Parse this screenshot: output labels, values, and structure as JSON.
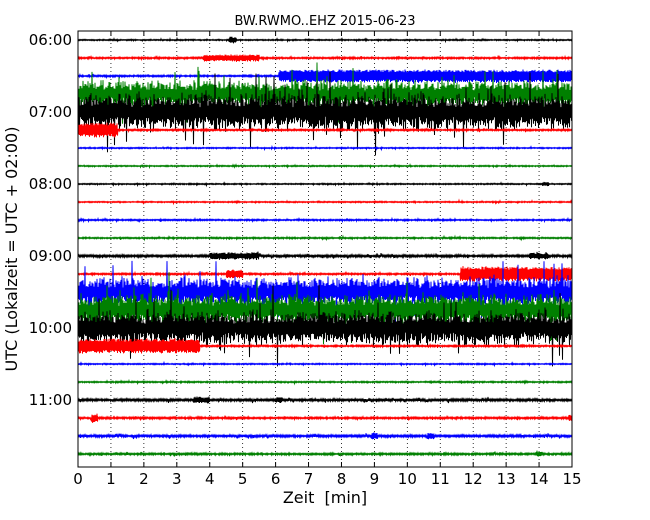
{
  "chart_data": {
    "type": "line",
    "title": "BW.RWMO..EHZ 2015-06-23",
    "xlabel": "Zeit  [min]",
    "ylabel": "UTC (Lokalzeit = UTC + 02:00)",
    "xlim": [
      0,
      15
    ],
    "xticks": [
      0,
      1,
      2,
      3,
      4,
      5,
      6,
      7,
      8,
      9,
      10,
      11,
      12,
      13,
      14,
      15
    ],
    "ytick_labels": [
      "06:00",
      "07:00",
      "08:00",
      "09:00",
      "10:00",
      "11:00"
    ],
    "grid": "vertical dotted at each minute",
    "colors": [
      "#000000",
      "#ff0000",
      "#0000ff",
      "#008000"
    ],
    "traces": [
      {
        "start": "06:00",
        "color": "#000000",
        "base": 0.25,
        "bursts": [
          [
            4.6,
            4.8,
            3
          ]
        ]
      },
      {
        "start": "06:15",
        "color": "#ff0000",
        "base": 0.35,
        "bursts": [
          [
            3.8,
            5.5,
            3
          ]
        ]
      },
      {
        "start": "06:30",
        "color": "#0000ff",
        "base": 0.35,
        "bursts": [
          [
            6.1,
            15,
            6
          ]
        ]
      },
      {
        "start": "06:45",
        "color": "#008000",
        "base": 5.5,
        "bursts": []
      },
      {
        "start": "07:00",
        "color": "#000000",
        "base": 7.5,
        "bursts": []
      },
      {
        "start": "07:15",
        "color": "#ff0000",
        "base": 0.35,
        "bursts": [
          [
            0,
            1.2,
            7
          ]
        ]
      },
      {
        "start": "07:30",
        "color": "#0000ff",
        "base": 0.25,
        "bursts": []
      },
      {
        "start": "07:45",
        "color": "#008000",
        "base": 0.25,
        "bursts": []
      },
      {
        "start": "08:00",
        "color": "#000000",
        "base": 0.25,
        "bursts": [
          [
            14.1,
            14.3,
            2
          ]
        ]
      },
      {
        "start": "08:15",
        "color": "#ff0000",
        "base": 0.25,
        "bursts": []
      },
      {
        "start": "08:30",
        "color": "#0000ff",
        "base": 0.3,
        "bursts": []
      },
      {
        "start": "08:45",
        "color": "#008000",
        "base": 0.3,
        "bursts": []
      },
      {
        "start": "09:00",
        "color": "#000000",
        "base": 0.5,
        "bursts": [
          [
            4.0,
            5.5,
            3
          ],
          [
            13.7,
            14.3,
            2.5
          ]
        ]
      },
      {
        "start": "09:15",
        "color": "#ff0000",
        "base": 0.35,
        "bursts": [
          [
            4.5,
            5.0,
            4
          ],
          [
            11.6,
            15,
            7
          ]
        ]
      },
      {
        "start": "09:30",
        "color": "#0000ff",
        "base": 6,
        "bursts": []
      },
      {
        "start": "09:45",
        "color": "#008000",
        "base": 6.5,
        "bursts": []
      },
      {
        "start": "10:00",
        "color": "#000000",
        "base": 7,
        "bursts": []
      },
      {
        "start": "10:15",
        "color": "#ff0000",
        "base": 0.35,
        "bursts": [
          [
            0,
            3.7,
            7
          ]
        ]
      },
      {
        "start": "10:30",
        "color": "#0000ff",
        "base": 0.25,
        "bursts": []
      },
      {
        "start": "10:45",
        "color": "#008000",
        "base": 0.3,
        "bursts": []
      },
      {
        "start": "11:00",
        "color": "#000000",
        "base": 0.5,
        "bursts": [
          [
            3.5,
            4.0,
            2.5
          ],
          [
            6.0,
            6.2,
            2.5
          ]
        ]
      },
      {
        "start": "11:15",
        "color": "#ff0000",
        "base": 0.4,
        "bursts": [
          [
            0.4,
            0.6,
            4
          ],
          [
            14.9,
            15,
            3
          ]
        ]
      },
      {
        "start": "11:30",
        "color": "#0000ff",
        "base": 0.5,
        "bursts": [
          [
            8.9,
            9.1,
            3
          ],
          [
            10.6,
            10.8,
            3
          ]
        ]
      },
      {
        "start": "11:45",
        "color": "#008000",
        "base": 0.4,
        "bursts": [
          [
            13.9,
            14.1,
            2
          ]
        ]
      }
    ]
  }
}
